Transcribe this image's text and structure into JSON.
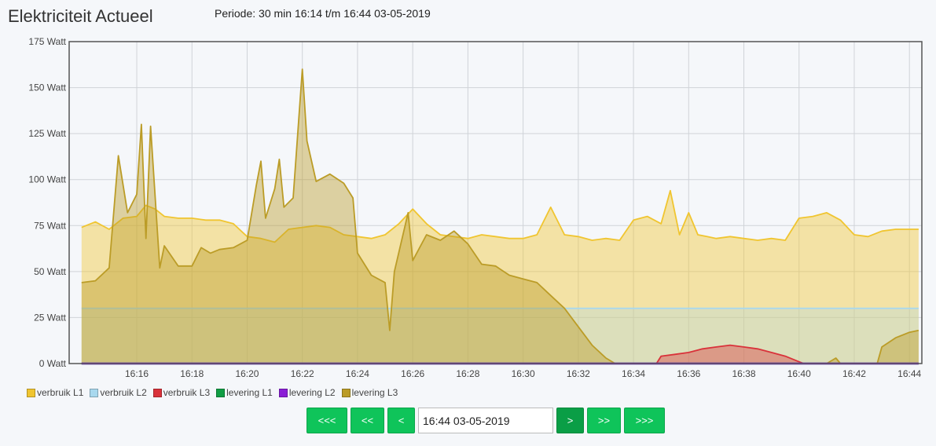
{
  "header": {
    "title": "Elektriciteit Actueel",
    "period": "Periode: 30 min 16:14 t/m 16:44 03-05-2019"
  },
  "nav": {
    "first": "<<<",
    "prev_large": "<<",
    "prev": "<",
    "date_value": "16:44 03-05-2019",
    "next": ">",
    "next_large": ">>",
    "last": ">>>"
  },
  "chart_data": {
    "type": "area",
    "x_range": [
      "16:14",
      "16:44"
    ],
    "ylim": [
      0,
      175
    ],
    "yticks": [
      "0 Watt",
      "25 Watt",
      "50 Watt",
      "75 Watt",
      "100 Watt",
      "125 Watt",
      "150 Watt",
      "175 Watt"
    ],
    "xticks": [
      "16:16",
      "16:18",
      "16:20",
      "16:22",
      "16:24",
      "16:26",
      "16:28",
      "16:30",
      "16:32",
      "16:34",
      "16:36",
      "16:38",
      "16:40",
      "16:42",
      "16:44"
    ],
    "grid": true,
    "legend_position": "bottom-left",
    "series": [
      {
        "name": "verbruik L1",
        "color": "#f0c530",
        "fill": "rgba(240,197,48,0.42)",
        "points": [
          [
            "16:14",
            74
          ],
          [
            "16:14:30",
            77
          ],
          [
            "16:15",
            73
          ],
          [
            "16:15:30",
            79
          ],
          [
            "16:16",
            80
          ],
          [
            "16:16:20",
            86
          ],
          [
            "16:16:40",
            84
          ],
          [
            "16:17",
            80
          ],
          [
            "16:17:30",
            79
          ],
          [
            "16:18",
            79
          ],
          [
            "16:18:30",
            78
          ],
          [
            "16:19",
            78
          ],
          [
            "16:19:30",
            76
          ],
          [
            "16:20",
            69
          ],
          [
            "16:20:30",
            68
          ],
          [
            "16:21",
            66
          ],
          [
            "16:21:30",
            73
          ],
          [
            "16:22",
            74
          ],
          [
            "16:22:30",
            75
          ],
          [
            "16:23",
            74
          ],
          [
            "16:23:30",
            70
          ],
          [
            "16:24",
            69
          ],
          [
            "16:24:30",
            68
          ],
          [
            "16:25",
            70
          ],
          [
            "16:25:30",
            76
          ],
          [
            "16:26",
            84
          ],
          [
            "16:26:30",
            76
          ],
          [
            "16:27",
            70
          ],
          [
            "16:27:30",
            69
          ],
          [
            "16:28",
            68
          ],
          [
            "16:28:30",
            70
          ],
          [
            "16:29",
            69
          ],
          [
            "16:29:30",
            68
          ],
          [
            "16:30",
            68
          ],
          [
            "16:30:30",
            70
          ],
          [
            "16:31",
            85
          ],
          [
            "16:31:30",
            70
          ],
          [
            "16:32",
            69
          ],
          [
            "16:32:30",
            67
          ],
          [
            "16:33",
            68
          ],
          [
            "16:33:30",
            67
          ],
          [
            "16:34",
            78
          ],
          [
            "16:34:30",
            80
          ],
          [
            "16:35",
            76
          ],
          [
            "16:35:20",
            94
          ],
          [
            "16:35:40",
            70
          ],
          [
            "16:36",
            82
          ],
          [
            "16:36:20",
            70
          ],
          [
            "16:36:40",
            69
          ],
          [
            "16:37",
            68
          ],
          [
            "16:37:30",
            69
          ],
          [
            "16:38",
            68
          ],
          [
            "16:38:30",
            67
          ],
          [
            "16:39",
            68
          ],
          [
            "16:39:30",
            67
          ],
          [
            "16:40",
            79
          ],
          [
            "16:40:30",
            80
          ],
          [
            "16:41",
            82
          ],
          [
            "16:41:30",
            78
          ],
          [
            "16:42",
            70
          ],
          [
            "16:42:30",
            69
          ],
          [
            "16:43",
            72
          ],
          [
            "16:43:30",
            73
          ],
          [
            "16:44",
            73
          ],
          [
            "16:44:20",
            73
          ]
        ]
      },
      {
        "name": "verbruik L2",
        "color": "#a8d8ee",
        "fill": "rgba(168,216,238,0.30)",
        "points": [
          [
            "16:14",
            30
          ],
          [
            "16:15",
            30
          ],
          [
            "16:16",
            30
          ],
          [
            "16:17",
            30
          ],
          [
            "16:18",
            30
          ],
          [
            "16:19",
            30
          ],
          [
            "16:20",
            30
          ],
          [
            "16:21",
            30
          ],
          [
            "16:22",
            30
          ],
          [
            "16:23",
            30
          ],
          [
            "16:24",
            30
          ],
          [
            "16:25",
            30
          ],
          [
            "16:26",
            30
          ],
          [
            "16:27",
            30
          ],
          [
            "16:28",
            30
          ],
          [
            "16:29",
            30
          ],
          [
            "16:30",
            30
          ],
          [
            "16:31",
            30
          ],
          [
            "16:32",
            30
          ],
          [
            "16:33",
            30
          ],
          [
            "16:34",
            30
          ],
          [
            "16:35",
            30
          ],
          [
            "16:36",
            30
          ],
          [
            "16:37",
            30
          ],
          [
            "16:38",
            30
          ],
          [
            "16:39",
            30
          ],
          [
            "16:40",
            30
          ],
          [
            "16:41",
            30
          ],
          [
            "16:42",
            30
          ],
          [
            "16:43",
            30
          ],
          [
            "16:44",
            30
          ],
          [
            "16:44:20",
            30
          ]
        ]
      },
      {
        "name": "verbruik L3",
        "color": "#d9323a",
        "fill": "rgba(217,50,58,0.40)",
        "points": [
          [
            "16:14",
            0
          ],
          [
            "16:34:50",
            0
          ],
          [
            "16:35",
            4
          ],
          [
            "16:35:30",
            5
          ],
          [
            "16:36",
            6
          ],
          [
            "16:36:30",
            8
          ],
          [
            "16:37",
            9
          ],
          [
            "16:37:30",
            10
          ],
          [
            "16:38",
            9
          ],
          [
            "16:38:30",
            8
          ],
          [
            "16:39",
            6
          ],
          [
            "16:39:30",
            4
          ],
          [
            "16:40",
            1
          ],
          [
            "16:40:10",
            0
          ],
          [
            "16:44:20",
            0
          ]
        ]
      },
      {
        "name": "levering L1",
        "color": "#119e44",
        "fill": "rgba(17,158,68,0.0)",
        "points": [
          [
            "16:14",
            0
          ],
          [
            "16:44:20",
            0
          ]
        ]
      },
      {
        "name": "levering L2",
        "color": "#8b1fd6",
        "fill": "rgba(139,31,214,0.0)",
        "points": [
          [
            "16:14",
            0
          ],
          [
            "16:44:20",
            0
          ]
        ]
      },
      {
        "name": "levering L3",
        "color": "#bb9c27",
        "fill": "rgba(187,156,39,0.42)",
        "points": [
          [
            "16:14",
            44
          ],
          [
            "16:14:30",
            45
          ],
          [
            "16:15",
            52
          ],
          [
            "16:15:20",
            113
          ],
          [
            "16:15:40",
            82
          ],
          [
            "16:16",
            92
          ],
          [
            "16:16:10",
            130
          ],
          [
            "16:16:20",
            68
          ],
          [
            "16:16:30",
            129
          ],
          [
            "16:16:50",
            52
          ],
          [
            "16:17",
            64
          ],
          [
            "16:17:30",
            53
          ],
          [
            "16:18",
            53
          ],
          [
            "16:18:20",
            63
          ],
          [
            "16:18:40",
            60
          ],
          [
            "16:19",
            62
          ],
          [
            "16:19:30",
            63
          ],
          [
            "16:20",
            67
          ],
          [
            "16:20:20",
            97
          ],
          [
            "16:20:30",
            110
          ],
          [
            "16:20:40",
            79
          ],
          [
            "16:21",
            95
          ],
          [
            "16:21:10",
            111
          ],
          [
            "16:21:20",
            85
          ],
          [
            "16:21:40",
            90
          ],
          [
            "16:22",
            160
          ],
          [
            "16:22:10",
            121
          ],
          [
            "16:22:30",
            99
          ],
          [
            "16:23",
            103
          ],
          [
            "16:23:30",
            98
          ],
          [
            "16:23:50",
            90
          ],
          [
            "16:24",
            60
          ],
          [
            "16:24:30",
            48
          ],
          [
            "16:25",
            44
          ],
          [
            "16:25:10",
            18
          ],
          [
            "16:25:20",
            50
          ],
          [
            "16:25:50",
            82
          ],
          [
            "16:26",
            56
          ],
          [
            "16:26:30",
            70
          ],
          [
            "16:27",
            67
          ],
          [
            "16:27:30",
            72
          ],
          [
            "16:28",
            65
          ],
          [
            "16:28:30",
            54
          ],
          [
            "16:29",
            53
          ],
          [
            "16:29:30",
            48
          ],
          [
            "16:30",
            46
          ],
          [
            "16:30:30",
            44
          ],
          [
            "16:31",
            37
          ],
          [
            "16:31:30",
            30
          ],
          [
            "16:32",
            20
          ],
          [
            "16:32:30",
            10
          ],
          [
            "16:33",
            3
          ],
          [
            "16:33:20",
            0
          ],
          [
            "16:41",
            0
          ],
          [
            "16:41:20",
            3
          ],
          [
            "16:41:30",
            0
          ],
          [
            "16:42:50",
            0
          ],
          [
            "16:43",
            9
          ],
          [
            "16:43:30",
            14
          ],
          [
            "16:44",
            17
          ],
          [
            "16:44:20",
            18
          ]
        ]
      }
    ]
  }
}
